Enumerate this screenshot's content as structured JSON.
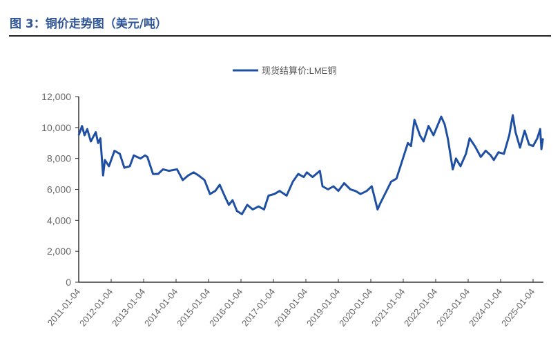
{
  "figure_title": "图 3：铜价走势图（美元/吨）",
  "colors": {
    "title": "#2f5597",
    "series": "#1f4fa3",
    "axis": "#333333",
    "tick_label": "#666666"
  },
  "chart_data": {
    "type": "line",
    "title": "",
    "xlabel": "",
    "ylabel": "",
    "ylim": [
      0,
      12000
    ],
    "yticks": [
      "0",
      "2,000",
      "4,000",
      "6,000",
      "8,000",
      "10,000",
      "12,000"
    ],
    "xticks": [
      "2011-01-04",
      "2012-01-04",
      "2013-01-04",
      "2014-01-04",
      "2015-01-04",
      "2016-01-04",
      "2017-01-04",
      "2018-01-04",
      "2019-01-04",
      "2020-01-04",
      "2021-01-04",
      "2022-01-04",
      "2023-01-04",
      "2024-01-04",
      "2025-01-04"
    ],
    "grid": false,
    "legend": "top-center",
    "series": [
      {
        "name": "现货结算价:LME铜",
        "points": [
          [
            "2011-01-04",
            9500
          ],
          [
            "2011-02-10",
            10100
          ],
          [
            "2011-03-10",
            9500
          ],
          [
            "2011-04-10",
            9900
          ],
          [
            "2011-05-20",
            9100
          ],
          [
            "2011-07-15",
            9700
          ],
          [
            "2011-08-10",
            9000
          ],
          [
            "2011-09-05",
            9300
          ],
          [
            "2011-10-05",
            6900
          ],
          [
            "2011-10-25",
            7900
          ],
          [
            "2011-12-10",
            7500
          ],
          [
            "2012-02-10",
            8500
          ],
          [
            "2012-04-10",
            8300
          ],
          [
            "2012-06-01",
            7400
          ],
          [
            "2012-08-01",
            7500
          ],
          [
            "2012-09-15",
            8200
          ],
          [
            "2012-12-01",
            8000
          ],
          [
            "2013-01-20",
            8200
          ],
          [
            "2013-02-15",
            8100
          ],
          [
            "2013-04-20",
            7000
          ],
          [
            "2013-06-15",
            7000
          ],
          [
            "2013-08-10",
            7300
          ],
          [
            "2013-10-15",
            7200
          ],
          [
            "2014-01-15",
            7300
          ],
          [
            "2014-03-20",
            6600
          ],
          [
            "2014-05-20",
            6900
          ],
          [
            "2014-07-20",
            7100
          ],
          [
            "2014-09-15",
            6900
          ],
          [
            "2014-11-20",
            6600
          ],
          [
            "2015-01-20",
            5700
          ],
          [
            "2015-03-20",
            5900
          ],
          [
            "2015-05-10",
            6300
          ],
          [
            "2015-07-10",
            5500
          ],
          [
            "2015-08-20",
            5000
          ],
          [
            "2015-10-01",
            5300
          ],
          [
            "2015-11-20",
            4600
          ],
          [
            "2016-01-15",
            4400
          ],
          [
            "2016-03-15",
            5000
          ],
          [
            "2016-05-15",
            4700
          ],
          [
            "2016-07-20",
            4900
          ],
          [
            "2016-09-20",
            4700
          ],
          [
            "2016-11-10",
            5600
          ],
          [
            "2017-01-15",
            5700
          ],
          [
            "2017-03-15",
            5900
          ],
          [
            "2017-06-01",
            5600
          ],
          [
            "2017-08-10",
            6500
          ],
          [
            "2017-10-10",
            7000
          ],
          [
            "2017-12-10",
            6800
          ],
          [
            "2018-01-15",
            7100
          ],
          [
            "2018-03-20",
            6800
          ],
          [
            "2018-06-10",
            7200
          ],
          [
            "2018-07-10",
            6200
          ],
          [
            "2018-09-10",
            6000
          ],
          [
            "2018-11-10",
            6200
          ],
          [
            "2019-01-04",
            5900
          ],
          [
            "2019-03-10",
            6400
          ],
          [
            "2019-05-20",
            6000
          ],
          [
            "2019-07-15",
            5900
          ],
          [
            "2019-09-10",
            5700
          ],
          [
            "2019-11-20",
            5900
          ],
          [
            "2020-01-15",
            6200
          ],
          [
            "2020-03-20",
            4700
          ],
          [
            "2020-04-20",
            5100
          ],
          [
            "2020-06-20",
            5800
          ],
          [
            "2020-08-20",
            6500
          ],
          [
            "2020-10-20",
            6700
          ],
          [
            "2020-12-20",
            7800
          ],
          [
            "2021-02-25",
            9000
          ],
          [
            "2021-04-01",
            8800
          ],
          [
            "2021-05-10",
            10500
          ],
          [
            "2021-07-10",
            9500
          ],
          [
            "2021-08-20",
            9100
          ],
          [
            "2021-10-15",
            10100
          ],
          [
            "2021-12-10",
            9500
          ],
          [
            "2022-03-07",
            10700
          ],
          [
            "2022-04-15",
            10200
          ],
          [
            "2022-05-20",
            9300
          ],
          [
            "2022-07-15",
            7300
          ],
          [
            "2022-08-20",
            8000
          ],
          [
            "2022-10-10",
            7500
          ],
          [
            "2022-12-10",
            8300
          ],
          [
            "2023-01-20",
            9300
          ],
          [
            "2023-03-20",
            8800
          ],
          [
            "2023-05-25",
            8100
          ],
          [
            "2023-07-20",
            8500
          ],
          [
            "2023-09-15",
            8200
          ],
          [
            "2023-10-20",
            7900
          ],
          [
            "2023-12-10",
            8400
          ],
          [
            "2024-02-10",
            8300
          ],
          [
            "2024-04-10",
            9500
          ],
          [
            "2024-05-20",
            10800
          ],
          [
            "2024-06-20",
            9700
          ],
          [
            "2024-08-10",
            8700
          ],
          [
            "2024-10-01",
            9800
          ],
          [
            "2024-11-20",
            8900
          ],
          [
            "2025-01-04",
            8800
          ],
          [
            "2025-02-20",
            9300
          ],
          [
            "2025-03-25",
            9900
          ],
          [
            "2025-04-08",
            8600
          ],
          [
            "2025-04-25",
            9300
          ]
        ]
      }
    ]
  }
}
